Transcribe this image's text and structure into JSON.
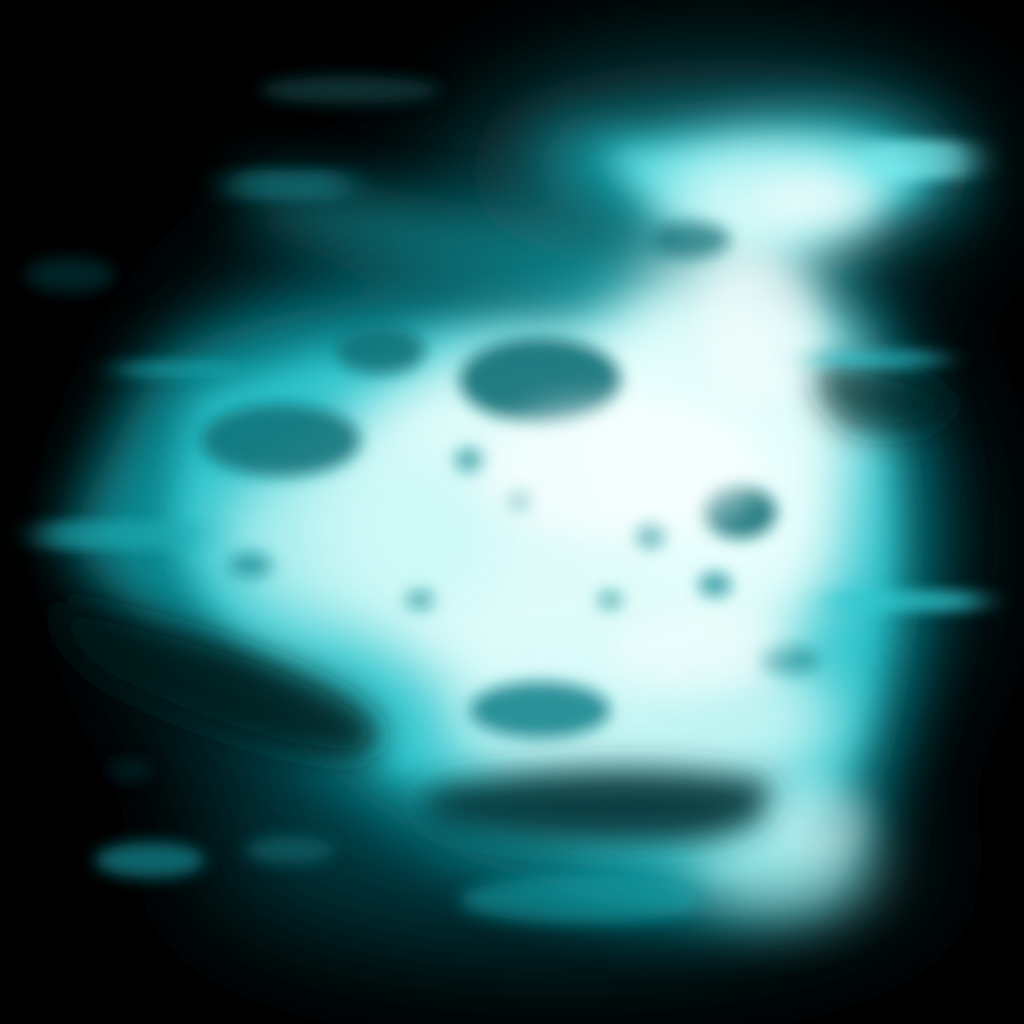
{
  "palette": {
    "background": "#000000",
    "deep_teal": "#063f45",
    "mid_teal": "#0f8f98",
    "cyan": "#2fc7cf",
    "bright_cyan": "#7ff0f2",
    "core_white": "#e9fffd"
  }
}
